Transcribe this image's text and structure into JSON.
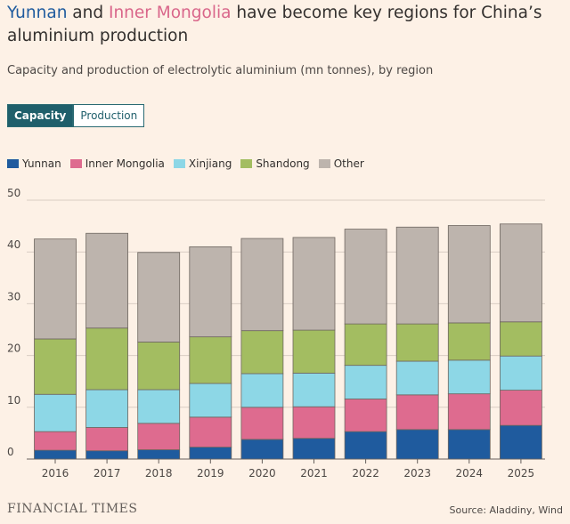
{
  "title": {
    "part1": "Yunnan",
    "part2": " and ",
    "part3": "Inner Mongolia",
    "part4": " have become key regions for China’s aluminium production"
  },
  "subtitle": "Capacity and production of electrolytic aluminium (mn tonnes), by region",
  "tabs": [
    {
      "label": "Capacity",
      "active": true
    },
    {
      "label": "Production",
      "active": false
    }
  ],
  "source": "Source: Aladdiny, Wind",
  "logo": "FINANCIAL TIMES",
  "chart_data": {
    "type": "bar",
    "stacked": true,
    "categories": [
      "2016",
      "2017",
      "2018",
      "2019",
      "2020",
      "2021",
      "2022",
      "2023",
      "2024",
      "2025"
    ],
    "ylim": [
      0,
      50
    ],
    "yticks": [
      0,
      10,
      20,
      30,
      40,
      50
    ],
    "grid": true,
    "legend": "top-left",
    "series": [
      {
        "name": "Yunnan",
        "color": "#1f5b9e",
        "values": [
          1.7,
          1.6,
          1.8,
          2.3,
          3.8,
          4.0,
          5.3,
          5.7,
          5.7,
          6.5
        ]
      },
      {
        "name": "Inner Mongolia",
        "color": "#de6b8f",
        "values": [
          3.6,
          4.5,
          5.1,
          5.8,
          6.2,
          6.1,
          6.3,
          6.7,
          6.9,
          6.8
        ]
      },
      {
        "name": "Xinjiang",
        "color": "#8dd7e6",
        "values": [
          7.2,
          7.3,
          6.5,
          6.5,
          6.5,
          6.5,
          6.5,
          6.5,
          6.5,
          6.6
        ]
      },
      {
        "name": "Shandong",
        "color": "#a3bd61",
        "values": [
          10.7,
          11.9,
          9.2,
          9.0,
          8.3,
          8.3,
          8.0,
          7.2,
          7.2,
          6.6
        ]
      },
      {
        "name": "Other",
        "color": "#bdb4ad",
        "values": [
          19.3,
          18.3,
          17.3,
          17.4,
          17.8,
          17.9,
          18.3,
          18.7,
          18.8,
          18.9
        ]
      }
    ]
  }
}
